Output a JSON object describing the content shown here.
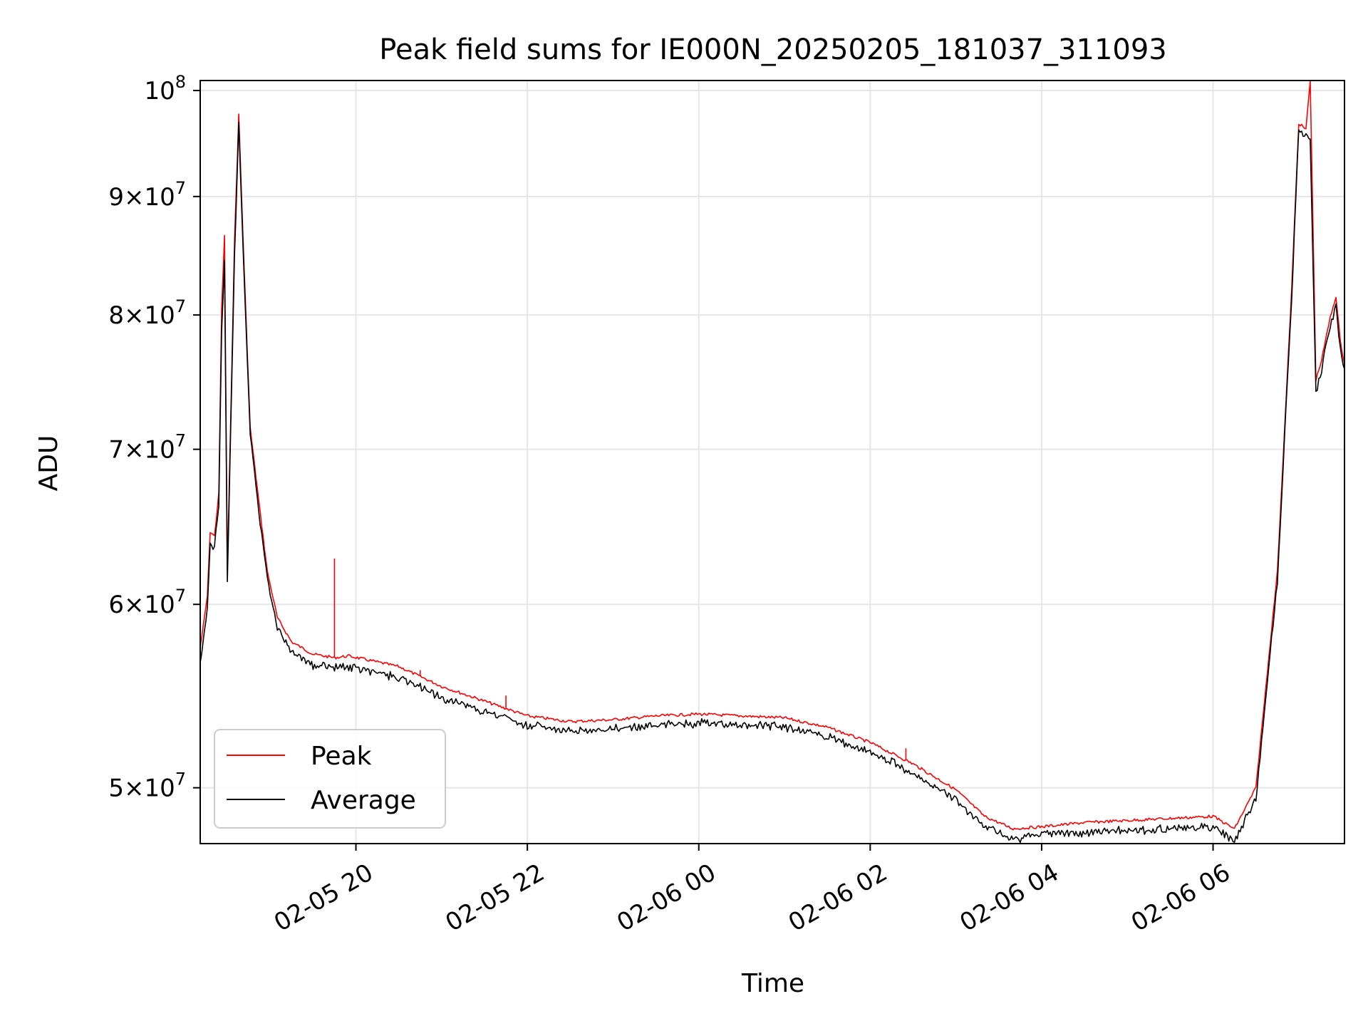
{
  "chart_data": {
    "type": "line",
    "title": "Peak field sums for IE000N_20250205_181037_311093",
    "xlabel": "Time",
    "ylabel": "ADU",
    "yscale": "log",
    "grid": true,
    "legend_position": "lower-left",
    "xlim": [
      "2025-02-05 18:11",
      "2025-02-06 07:32"
    ],
    "ylim": [
      47300000,
      101000000
    ],
    "x_ticks": [
      {
        "value": "2025-02-05 20:00",
        "label": "02-05 20"
      },
      {
        "value": "2025-02-05 22:00",
        "label": "02-05 22"
      },
      {
        "value": "2025-02-06 00:00",
        "label": "02-06 00"
      },
      {
        "value": "2025-02-06 02:00",
        "label": "02-06 02"
      },
      {
        "value": "2025-02-06 04:00",
        "label": "02-06 04"
      },
      {
        "value": "2025-02-06 06:00",
        "label": "02-06 06"
      }
    ],
    "y_ticks": [
      {
        "value": 50000000,
        "mant": "5",
        "exp": "7"
      },
      {
        "value": 60000000,
        "mant": "6",
        "exp": "7"
      },
      {
        "value": 70000000,
        "mant": "7",
        "exp": "7"
      },
      {
        "value": 80000000,
        "mant": "8",
        "exp": "7"
      },
      {
        "value": 90000000,
        "mant": "9",
        "exp": "7"
      },
      {
        "value": 100000000,
        "mant": "",
        "exp": "8"
      }
    ],
    "series": [
      {
        "name": "Peak",
        "color": "#ff0000",
        "points": [
          [
            "2025-02-05 18:11",
            57500000
          ],
          [
            "2025-02-05 18:13",
            58600000
          ],
          [
            "2025-02-05 18:16",
            60500000
          ],
          [
            "2025-02-05 18:18",
            64500000
          ],
          [
            "2025-02-05 18:21",
            64200000
          ],
          [
            "2025-02-05 18:24",
            67000000
          ],
          [
            "2025-02-05 18:26",
            80500000
          ],
          [
            "2025-02-05 18:28",
            86500000
          ],
          [
            "2025-02-05 18:30",
            62000000
          ],
          [
            "2025-02-05 18:32",
            70500000
          ],
          [
            "2025-02-05 18:35",
            86000000
          ],
          [
            "2025-02-05 18:38",
            97600000
          ],
          [
            "2025-02-05 18:42",
            83000000
          ],
          [
            "2025-02-05 18:46",
            71500000
          ],
          [
            "2025-02-05 18:52",
            66500000
          ],
          [
            "2025-02-05 18:58",
            62000000
          ],
          [
            "2025-02-05 19:05",
            59200000
          ],
          [
            "2025-02-05 19:15",
            57800000
          ],
          [
            "2025-02-05 19:30",
            57100000
          ],
          [
            "2025-02-05 19:45",
            56900000
          ],
          [
            "2025-02-05 19:55",
            57000000
          ],
          [
            "2025-02-05 20:30",
            56400000
          ],
          [
            "2025-02-05 21:00",
            55300000
          ],
          [
            "2025-02-05 21:30",
            54500000
          ],
          [
            "2025-02-05 22:00",
            53700000
          ],
          [
            "2025-02-05 22:30",
            53400000
          ],
          [
            "2025-02-05 23:00",
            53500000
          ],
          [
            "2025-02-05 23:30",
            53700000
          ],
          [
            "2025-02-06 00:00",
            53800000
          ],
          [
            "2025-02-06 00:30",
            53700000
          ],
          [
            "2025-02-06 01:00",
            53600000
          ],
          [
            "2025-02-06 01:30",
            53100000
          ],
          [
            "2025-02-06 02:00",
            52300000
          ],
          [
            "2025-02-06 02:30",
            51200000
          ],
          [
            "2025-02-06 03:00",
            49900000
          ],
          [
            "2025-02-06 03:20",
            48600000
          ],
          [
            "2025-02-06 03:40",
            48000000
          ],
          [
            "2025-02-06 04:00",
            48100000
          ],
          [
            "2025-02-06 04:30",
            48300000
          ],
          [
            "2025-02-06 05:00",
            48400000
          ],
          [
            "2025-02-06 05:30",
            48500000
          ],
          [
            "2025-02-06 06:00",
            48600000
          ],
          [
            "2025-02-06 06:15",
            48000000
          ],
          [
            "2025-02-06 06:30",
            50000000
          ],
          [
            "2025-02-06 06:45",
            62000000
          ],
          [
            "2025-02-06 06:55",
            82000000
          ],
          [
            "2025-02-06 07:00",
            96800000
          ],
          [
            "2025-02-06 07:05",
            96200000
          ],
          [
            "2025-02-06 07:08",
            101000000
          ],
          [
            "2025-02-06 07:12",
            75000000
          ],
          [
            "2025-02-06 07:16",
            76500000
          ],
          [
            "2025-02-06 07:22",
            79800000
          ],
          [
            "2025-02-06 07:26",
            81500000
          ],
          [
            "2025-02-06 07:29",
            78000000
          ],
          [
            "2025-02-06 07:32",
            76200000
          ]
        ],
        "spikes": [
          [
            "2025-02-05 19:45",
            62800000
          ],
          [
            "2025-02-05 20:45",
            56200000
          ],
          [
            "2025-02-05 21:45",
            54800000
          ],
          [
            "2025-02-06 02:25",
            52000000
          ]
        ]
      },
      {
        "name": "Average",
        "color": "#000000",
        "points": [
          [
            "2025-02-05 18:11",
            56800000
          ],
          [
            "2025-02-05 18:13",
            58000000
          ],
          [
            "2025-02-05 18:16",
            59800000
          ],
          [
            "2025-02-05 18:18",
            63800000
          ],
          [
            "2025-02-05 18:21",
            63600000
          ],
          [
            "2025-02-05 18:24",
            66400000
          ],
          [
            "2025-02-05 18:26",
            79000000
          ],
          [
            "2025-02-05 18:28",
            84500000
          ],
          [
            "2025-02-05 18:30",
            61500000
          ],
          [
            "2025-02-05 18:32",
            69800000
          ],
          [
            "2025-02-05 18:35",
            85000000
          ],
          [
            "2025-02-05 18:38",
            96800000
          ],
          [
            "2025-02-05 18:42",
            82500000
          ],
          [
            "2025-02-05 18:46",
            71000000
          ],
          [
            "2025-02-05 18:52",
            66000000
          ],
          [
            "2025-02-05 18:58",
            61500000
          ],
          [
            "2025-02-05 19:05",
            58700000
          ],
          [
            "2025-02-05 19:15",
            57300000
          ],
          [
            "2025-02-05 19:30",
            56600000
          ],
          [
            "2025-02-05 19:45",
            56400000
          ],
          [
            "2025-02-05 19:55",
            56500000
          ],
          [
            "2025-02-05 20:30",
            55900000
          ],
          [
            "2025-02-05 21:00",
            54800000
          ],
          [
            "2025-02-05 21:30",
            54000000
          ],
          [
            "2025-02-05 22:00",
            53300000
          ],
          [
            "2025-02-05 22:30",
            53000000
          ],
          [
            "2025-02-05 23:00",
            53100000
          ],
          [
            "2025-02-05 23:30",
            53300000
          ],
          [
            "2025-02-06 00:00",
            53400000
          ],
          [
            "2025-02-06 00:30",
            53300000
          ],
          [
            "2025-02-06 01:00",
            53200000
          ],
          [
            "2025-02-06 01:30",
            52700000
          ],
          [
            "2025-02-06 02:00",
            51900000
          ],
          [
            "2025-02-06 02:30",
            50800000
          ],
          [
            "2025-02-06 03:00",
            49500000
          ],
          [
            "2025-02-06 03:20",
            48200000
          ],
          [
            "2025-02-06 03:40",
            47600000
          ],
          [
            "2025-02-06 04:00",
            47800000
          ],
          [
            "2025-02-06 04:30",
            47900000
          ],
          [
            "2025-02-06 05:00",
            48000000
          ],
          [
            "2025-02-06 05:30",
            48100000
          ],
          [
            "2025-02-06 06:00",
            48200000
          ],
          [
            "2025-02-06 06:15",
            47500000
          ],
          [
            "2025-02-06 06:30",
            49500000
          ],
          [
            "2025-02-06 06:45",
            61500000
          ],
          [
            "2025-02-06 06:55",
            81500000
          ],
          [
            "2025-02-06 07:00",
            96400000
          ],
          [
            "2025-02-06 07:05",
            95800000
          ],
          [
            "2025-02-06 07:08",
            95500000
          ],
          [
            "2025-02-06 07:12",
            74200000
          ],
          [
            "2025-02-06 07:16",
            76000000
          ],
          [
            "2025-02-06 07:22",
            79200000
          ],
          [
            "2025-02-06 07:26",
            80800000
          ],
          [
            "2025-02-06 07:29",
            77500000
          ],
          [
            "2025-02-06 07:32",
            75800000
          ]
        ],
        "spikes": []
      }
    ]
  }
}
